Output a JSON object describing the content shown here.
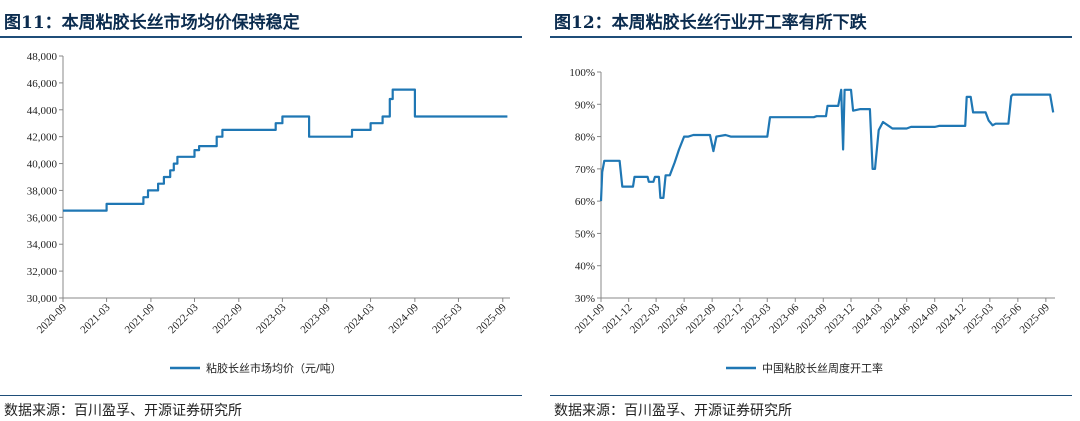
{
  "left_panel": {
    "title": "图11：本周粘胶长丝市场均价保持稳定",
    "source": "数据来源：百川盈孚、开源证券研究所"
  },
  "right_panel": {
    "title": "图12：本周粘胶长丝行业开工率有所下跌",
    "source": "数据来源：百川盈孚、开源证券研究所"
  },
  "colors": {
    "line": "#1f77b4",
    "title": "#0b2c4f",
    "rule": "#1f4e79"
  },
  "chart_data": [
    {
      "type": "line",
      "title": "",
      "ylim": [
        30000,
        48000
      ],
      "yticks": [
        "30,000",
        "32,000",
        "34,000",
        "36,000",
        "38,000",
        "40,000",
        "42,000",
        "44,000",
        "46,000",
        "48,000"
      ],
      "xlim": [
        "2020-09",
        "2025-10"
      ],
      "xticks": [
        "2020-09",
        "2021-03",
        "2021-09",
        "2022-03",
        "2022-09",
        "2023-03",
        "2023-09",
        "2024-03",
        "2024-09",
        "2025-03",
        "2025-09"
      ],
      "grid": false,
      "legend_position": "bottom",
      "series": [
        {
          "name": "粘胶长丝市场均价（元/吨）",
          "points": [
            [
              "2020-09-01",
              36500
            ],
            [
              "2021-03-01",
              36500
            ],
            [
              "2021-03-01",
              37000
            ],
            [
              "2021-08-01",
              37000
            ],
            [
              "2021-08-01",
              37500
            ],
            [
              "2021-08-20",
              37500
            ],
            [
              "2021-08-20",
              38000
            ],
            [
              "2021-10-01",
              38000
            ],
            [
              "2021-10-01",
              38500
            ],
            [
              "2021-10-25",
              38500
            ],
            [
              "2021-10-25",
              39000
            ],
            [
              "2021-11-20",
              39000
            ],
            [
              "2021-11-20",
              39500
            ],
            [
              "2021-12-05",
              39500
            ],
            [
              "2021-12-05",
              40000
            ],
            [
              "2021-12-20",
              40000
            ],
            [
              "2021-12-20",
              40500
            ],
            [
              "2022-03-01",
              40500
            ],
            [
              "2022-03-01",
              41000
            ],
            [
              "2022-03-20",
              41000
            ],
            [
              "2022-03-20",
              41300
            ],
            [
              "2022-06-01",
              41300
            ],
            [
              "2022-06-01",
              42000
            ],
            [
              "2022-06-25",
              42000
            ],
            [
              "2022-06-25",
              42500
            ],
            [
              "2023-02-01",
              42500
            ],
            [
              "2023-02-01",
              43000
            ],
            [
              "2023-03-01",
              43000
            ],
            [
              "2023-03-01",
              43500
            ],
            [
              "2023-06-20",
              43500
            ],
            [
              "2023-06-20",
              42000
            ],
            [
              "2023-12-15",
              42000
            ],
            [
              "2023-12-15",
              42500
            ],
            [
              "2024-03-01",
              42500
            ],
            [
              "2024-03-01",
              43000
            ],
            [
              "2024-04-20",
              43000
            ],
            [
              "2024-04-20",
              43500
            ],
            [
              "2024-05-20",
              43500
            ],
            [
              "2024-05-20",
              44800
            ],
            [
              "2024-06-01",
              44800
            ],
            [
              "2024-06-01",
              45500
            ],
            [
              "2024-09-01",
              45500
            ],
            [
              "2024-09-01",
              43500
            ],
            [
              "2025-09-20",
              43500
            ]
          ]
        }
      ]
    },
    {
      "type": "line",
      "title": "",
      "ylim": [
        30,
        100
      ],
      "yticks": [
        "30%",
        "40%",
        "50%",
        "60%",
        "70%",
        "80%",
        "90%",
        "100%"
      ],
      "xlim": [
        "2021-09",
        "2025-10"
      ],
      "xticks": [
        "2021-09",
        "2021-12",
        "2022-03",
        "2022-06",
        "2022-09",
        "2022-12",
        "2023-03",
        "2023-06",
        "2023-09",
        "2023-12",
        "2024-03",
        "2024-06",
        "2024-09",
        "2024-12",
        "2025-03",
        "2025-06",
        "2025-09"
      ],
      "grid": false,
      "legend_position": "bottom",
      "series": [
        {
          "name": "中国粘胶长丝周度开工率",
          "points": [
            [
              "2021-09-01",
              60
            ],
            [
              "2021-09-05",
              69
            ],
            [
              "2021-09-12",
              72.5
            ],
            [
              "2021-11-01",
              72.5
            ],
            [
              "2021-11-10",
              64.5
            ],
            [
              "2021-12-15",
              64.5
            ],
            [
              "2021-12-20",
              67.5
            ],
            [
              "2022-02-01",
              67.5
            ],
            [
              "2022-02-05",
              66
            ],
            [
              "2022-02-20",
              66
            ],
            [
              "2022-02-25",
              67.5
            ],
            [
              "2022-03-10",
              67.5
            ],
            [
              "2022-03-15",
              61
            ],
            [
              "2022-03-25",
              61
            ],
            [
              "2022-04-01",
              68
            ],
            [
              "2022-04-15",
              68
            ],
            [
              "2022-05-01",
              72
            ],
            [
              "2022-05-15",
              76
            ],
            [
              "2022-06-01",
              80
            ],
            [
              "2022-06-15",
              80
            ],
            [
              "2022-07-01",
              80.5
            ],
            [
              "2022-08-25",
              80.5
            ],
            [
              "2022-09-05",
              75.5
            ],
            [
              "2022-09-15",
              80
            ],
            [
              "2022-10-15",
              80.5
            ],
            [
              "2022-11-01",
              80
            ],
            [
              "2023-03-01",
              80
            ],
            [
              "2023-03-10",
              86
            ],
            [
              "2023-08-01",
              86
            ],
            [
              "2023-08-10",
              86.3
            ],
            [
              "2023-09-10",
              86.3
            ],
            [
              "2023-09-15",
              89.5
            ],
            [
              "2023-10-20",
              89.5
            ],
            [
              "2023-10-30",
              94.5
            ],
            [
              "2023-11-05",
              76
            ],
            [
              "2023-11-10",
              94.5
            ],
            [
              "2023-12-01",
              94.5
            ],
            [
              "2023-12-08",
              88
            ],
            [
              "2024-01-01",
              88.5
            ],
            [
              "2024-02-01",
              88.5
            ],
            [
              "2024-02-10",
              70
            ],
            [
              "2024-02-18",
              70
            ],
            [
              "2024-03-01",
              82
            ],
            [
              "2024-03-15",
              84.5
            ],
            [
              "2024-04-15",
              82.5
            ],
            [
              "2024-06-01",
              82.5
            ],
            [
              "2024-06-15",
              83
            ],
            [
              "2024-09-01",
              83
            ],
            [
              "2024-09-15",
              83.3
            ],
            [
              "2024-12-10",
              83.3
            ],
            [
              "2024-12-15",
              92.3
            ],
            [
              "2024-12-28",
              92.3
            ],
            [
              "2025-01-05",
              87.5
            ],
            [
              "2025-02-15",
              87.5
            ],
            [
              "2025-02-25",
              85
            ],
            [
              "2025-03-10",
              83.5
            ],
            [
              "2025-03-20",
              84
            ],
            [
              "2025-05-01",
              84
            ],
            [
              "2025-05-10",
              92.5
            ],
            [
              "2025-05-15",
              93
            ],
            [
              "2025-09-15",
              93
            ],
            [
              "2025-09-25",
              87.5
            ]
          ]
        }
      ]
    }
  ]
}
